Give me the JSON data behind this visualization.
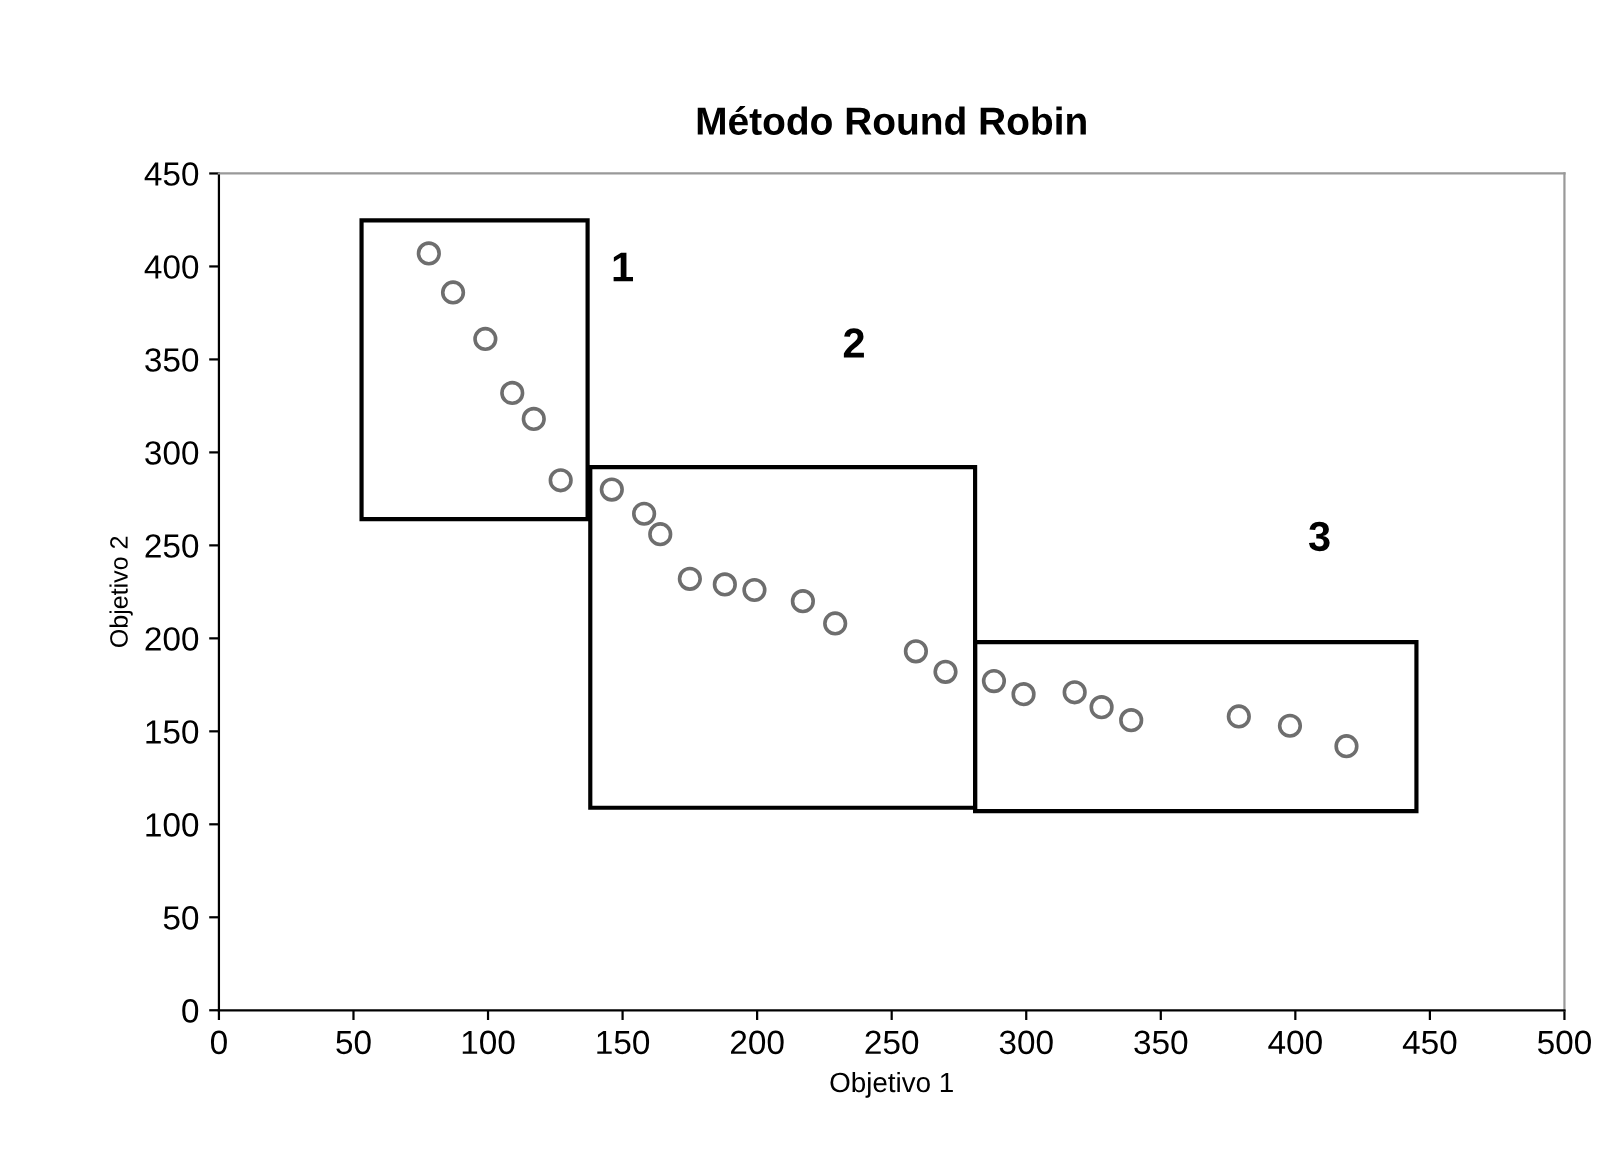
{
  "chart_data": {
    "type": "scatter",
    "title": "Método Round Robin",
    "xlabel": "Objetivo 1",
    "ylabel": "Objetivo 2",
    "xlim": [
      0,
      500
    ],
    "xticks": [
      0,
      50,
      100,
      150,
      200,
      250,
      300,
      350,
      400,
      450,
      500
    ],
    "ylim": [
      0,
      450
    ],
    "yticks": [
      0,
      50,
      100,
      150,
      200,
      250,
      300,
      350,
      400,
      450
    ],
    "marker": "circle",
    "series": [
      {
        "color": "#6e6e6e",
        "x": [
          78,
          87,
          99,
          109,
          117,
          127,
          146,
          158,
          164,
          175,
          188,
          199,
          217,
          229,
          259,
          270,
          288,
          299,
          318,
          328,
          339,
          379,
          398,
          419
        ],
        "values": [
          407,
          386,
          361,
          332,
          318,
          285,
          280,
          267,
          256,
          232,
          229,
          226,
          220,
          208,
          193,
          182,
          177,
          170,
          171,
          163,
          156,
          158,
          153,
          142
        ]
      }
    ],
    "annotations": [
      "1",
      "2",
      "3"
    ]
  }
}
